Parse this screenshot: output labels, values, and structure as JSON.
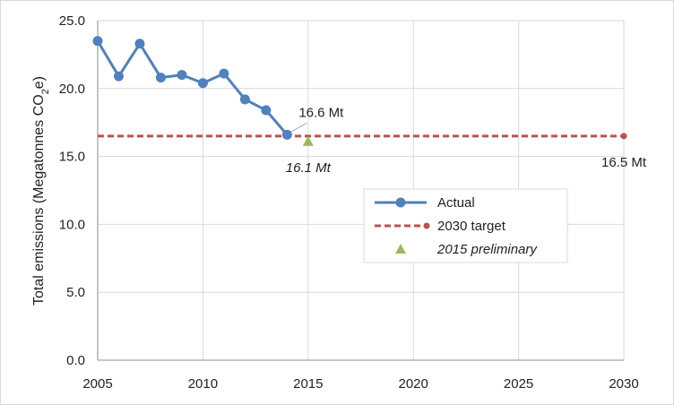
{
  "chart_data": {
    "type": "line",
    "ylabel": "Total emissions (Megatonnes CO2e)",
    "ylabel_parts": {
      "before": "Total emissions (Megatonnes CO",
      "sub": "2",
      "after": "e)"
    },
    "xlim": [
      2005,
      2030
    ],
    "ylim": [
      0,
      25
    ],
    "x_ticks": [
      "2005",
      "2010",
      "2015",
      "2020",
      "2025",
      "2030"
    ],
    "y_ticks": [
      "0.0",
      "5.0",
      "10.0",
      "15.0",
      "20.0",
      "25.0"
    ],
    "grid": true,
    "legend_position": "center-right",
    "series": [
      {
        "name": "Actual",
        "color": "#4f81bd",
        "points": [
          [
            2005,
            23.5
          ],
          [
            2006,
            20.9
          ],
          [
            2007,
            23.3
          ],
          [
            2008,
            20.8
          ],
          [
            2009,
            21.0
          ],
          [
            2010,
            20.4
          ],
          [
            2011,
            21.1
          ],
          [
            2012,
            19.2
          ],
          [
            2013,
            18.4
          ],
          [
            2014,
            16.6
          ]
        ]
      },
      {
        "name": "2030 target",
        "color": "#c0504d",
        "points": [
          [
            2005,
            16.5
          ],
          [
            2030,
            16.5
          ]
        ]
      },
      {
        "name": "2015 preliminary",
        "color": "#9bbb59",
        "points": [
          [
            2015,
            16.1
          ]
        ]
      }
    ],
    "annotations": {
      "actual_last": "16.6 Mt",
      "preliminary": "16.1 Mt",
      "target": "16.5 Mt"
    }
  }
}
